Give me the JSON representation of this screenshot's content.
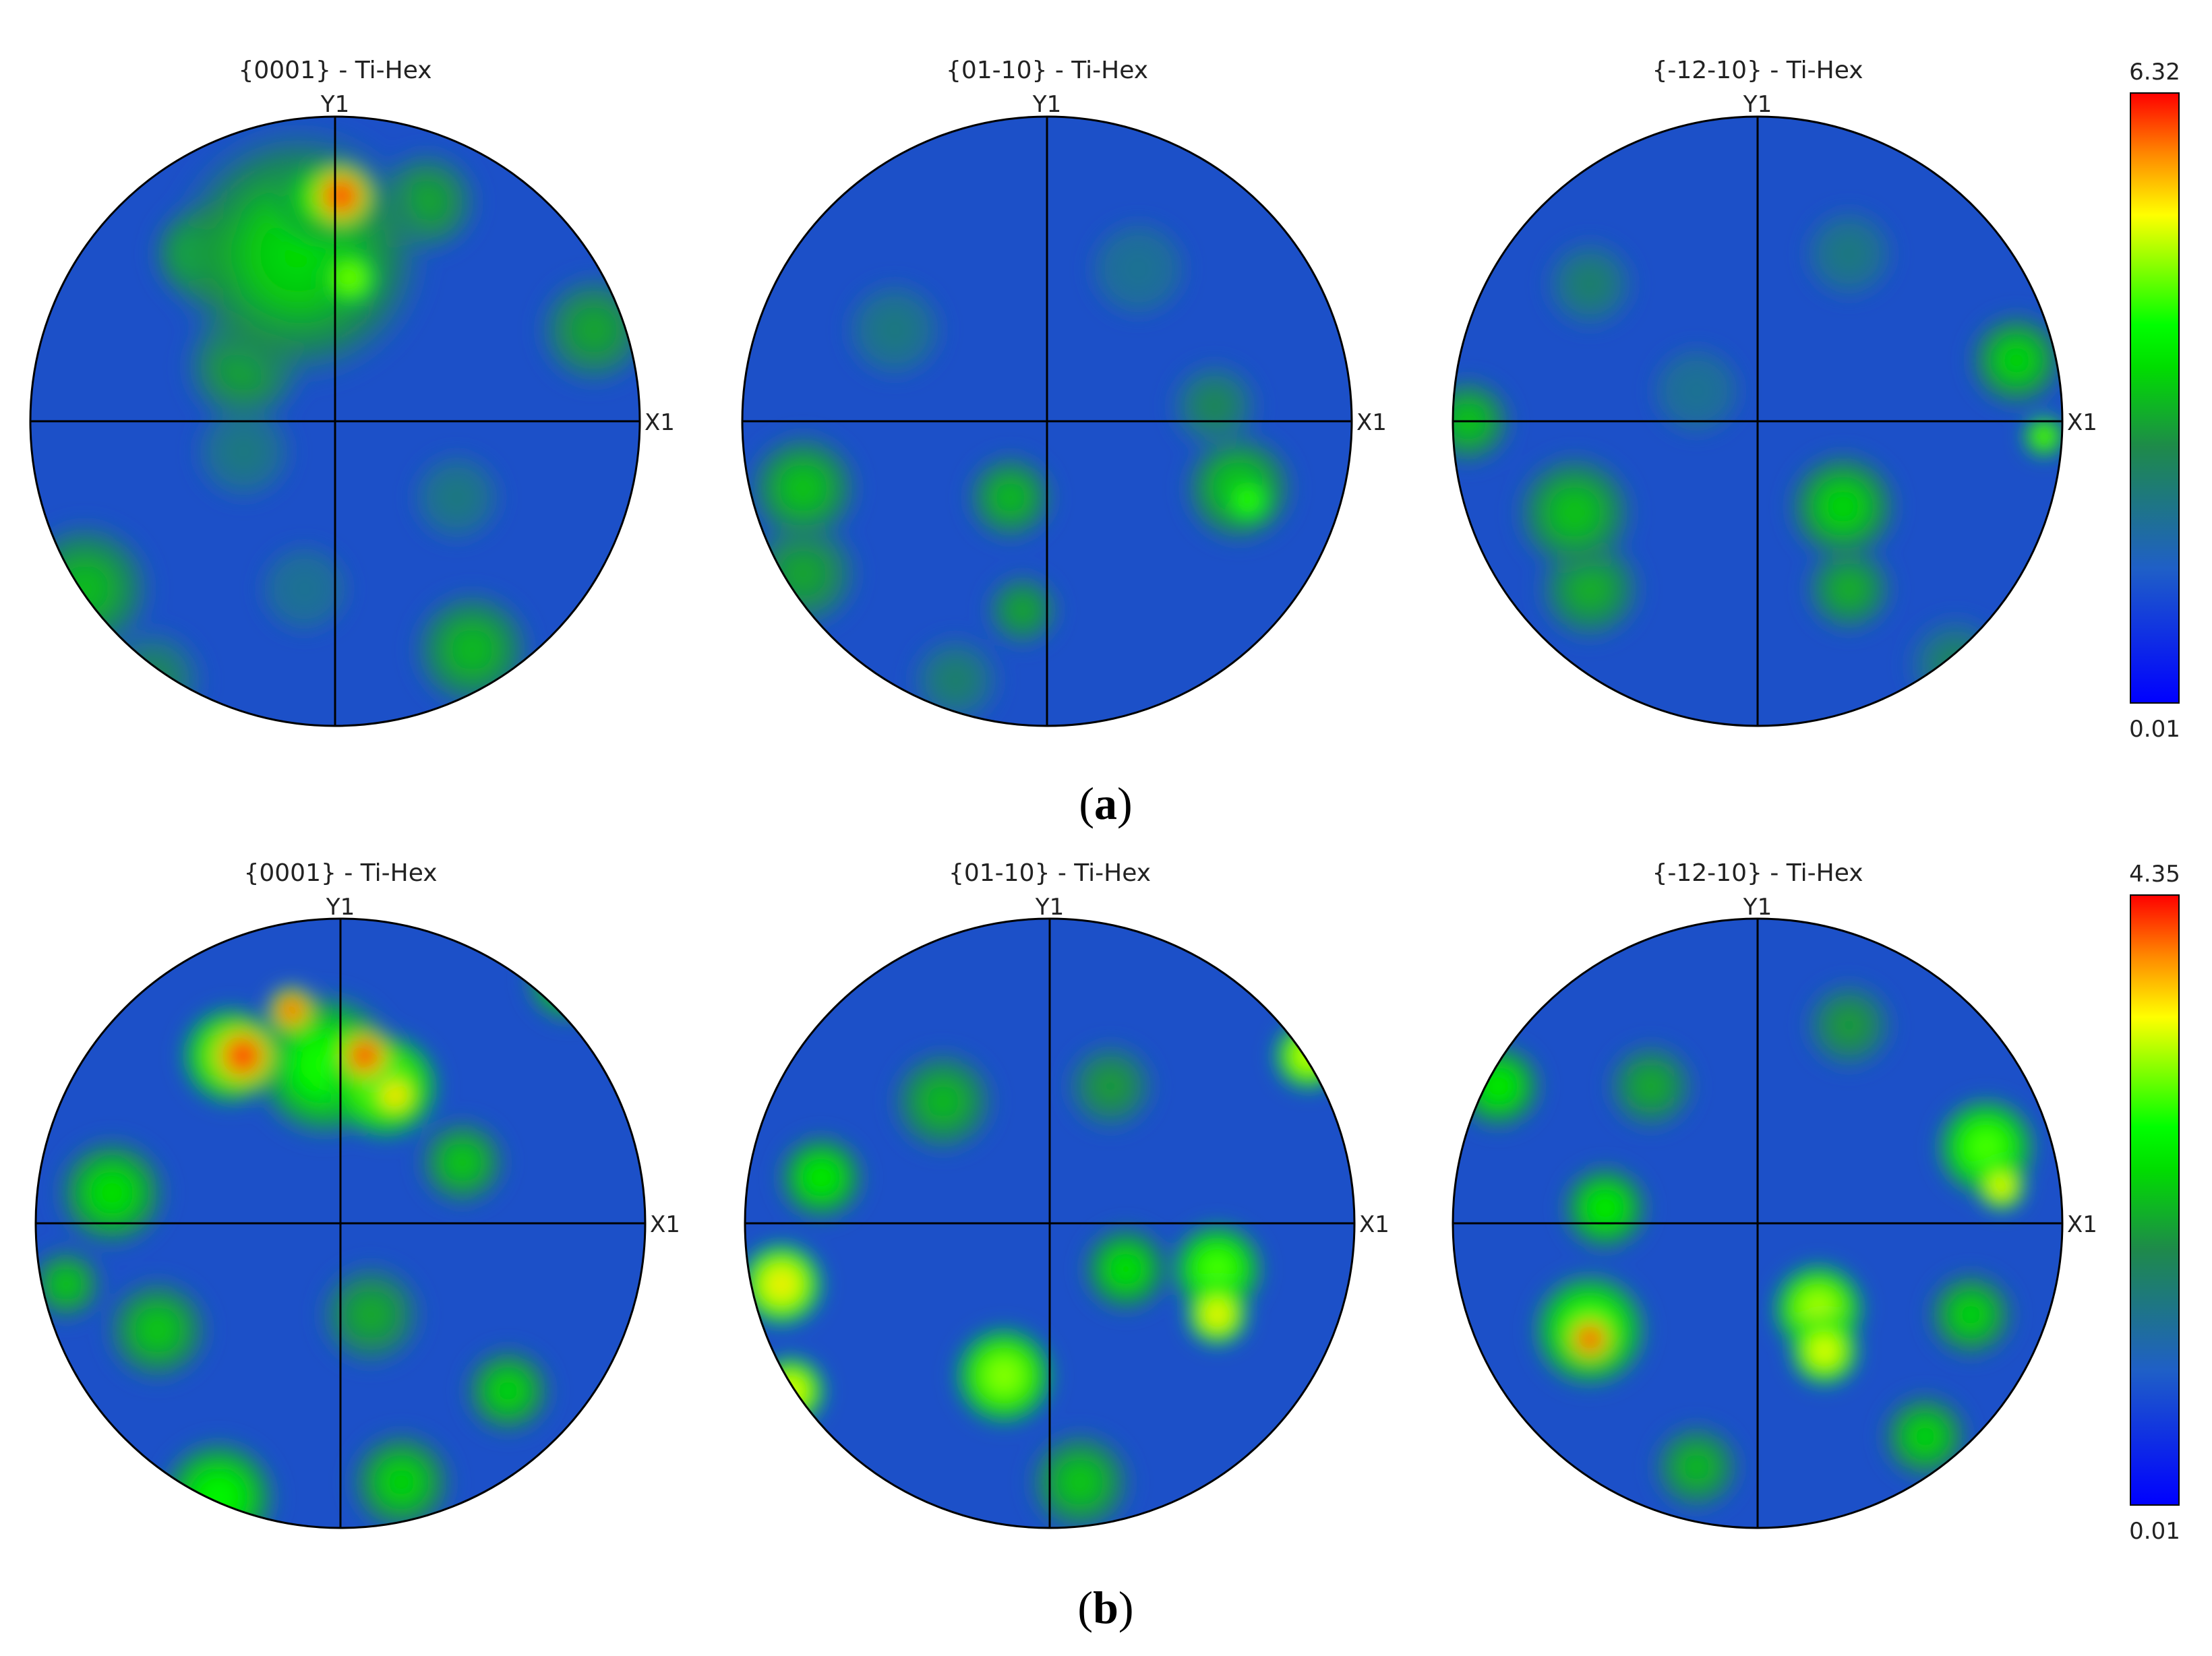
{
  "chart_data": [
    {
      "type": "heatmap",
      "panel_label": "a",
      "colorbar": {
        "max_label": "6.32",
        "min_label": "0.01",
        "max": 6.32,
        "min": 0.01
      },
      "plots": [
        {
          "title": "{0001} - Ti-Hex",
          "y_axis": "Y1",
          "x_axis": "X1",
          "features": [
            {
              "x": -0.43,
              "y": 0.55,
              "r": 0.14,
              "v": 3.5
            },
            {
              "x": -0.12,
              "y": 0.55,
              "r": 0.34,
              "v": 3.5
            },
            {
              "x": -0.05,
              "y": 0.73,
              "r": 0.12,
              "v": 3.8
            },
            {
              "x": 0.02,
              "y": 0.74,
              "r": 0.095,
              "v": 6.2
            },
            {
              "x": 0.05,
              "y": 0.47,
              "r": 0.08,
              "v": 4.6
            },
            {
              "x": 0.3,
              "y": 0.72,
              "r": 0.14,
              "v": 3.0
            },
            {
              "x": -0.3,
              "y": 0.18,
              "r": 0.16,
              "v": 3.0
            },
            {
              "x": 0.85,
              "y": 0.3,
              "r": 0.15,
              "v": 3.0
            },
            {
              "x": -0.82,
              "y": -0.55,
              "r": 0.18,
              "v": 3.2
            },
            {
              "x": 0.45,
              "y": -0.75,
              "r": 0.16,
              "v": 3.2
            },
            {
              "x": -0.3,
              "y": -0.1,
              "r": 0.13,
              "v": 2.2
            },
            {
              "x": 0.4,
              "y": -0.25,
              "r": 0.12,
              "v": 2.2
            },
            {
              "x": -0.6,
              "y": -0.85,
              "r": 0.14,
              "v": 2.6
            },
            {
              "x": -0.1,
              "y": -0.55,
              "r": 0.12,
              "v": 2.0
            }
          ]
        },
        {
          "title": "{01-10} - Ti-Hex",
          "y_axis": "Y1",
          "x_axis": "X1",
          "features": [
            {
              "x": -0.8,
              "y": -0.22,
              "r": 0.15,
              "v": 3.3
            },
            {
              "x": -0.8,
              "y": -0.5,
              "r": 0.15,
              "v": 3.0
            },
            {
              "x": -0.12,
              "y": -0.25,
              "r": 0.12,
              "v": 3.2
            },
            {
              "x": -0.08,
              "y": -0.62,
              "r": 0.1,
              "v": 3.0
            },
            {
              "x": 0.63,
              "y": -0.22,
              "r": 0.15,
              "v": 3.4
            },
            {
              "x": 0.66,
              "y": -0.26,
              "r": 0.07,
              "v": 4.3
            },
            {
              "x": 0.55,
              "y": 0.05,
              "r": 0.12,
              "v": 2.6
            },
            {
              "x": -0.5,
              "y": 0.3,
              "r": 0.13,
              "v": 2.2
            },
            {
              "x": 0.3,
              "y": 0.5,
              "r": 0.13,
              "v": 2.0
            },
            {
              "x": -0.3,
              "y": -0.85,
              "r": 0.12,
              "v": 2.4
            }
          ]
        },
        {
          "title": "{-12-10} - Ti-Hex",
          "y_axis": "Y1",
          "x_axis": "X1",
          "features": [
            {
              "x": -0.95,
              "y": 0.0,
              "r": 0.12,
              "v": 3.3
            },
            {
              "x": -0.6,
              "y": -0.3,
              "r": 0.16,
              "v": 3.3
            },
            {
              "x": -0.55,
              "y": -0.55,
              "r": 0.14,
              "v": 3.1
            },
            {
              "x": 0.28,
              "y": -0.28,
              "r": 0.15,
              "v": 3.5
            },
            {
              "x": 0.3,
              "y": -0.55,
              "r": 0.12,
              "v": 3.1
            },
            {
              "x": 0.85,
              "y": 0.2,
              "r": 0.13,
              "v": 3.5
            },
            {
              "x": 0.94,
              "y": -0.05,
              "r": 0.06,
              "v": 4.5
            },
            {
              "x": -0.55,
              "y": 0.45,
              "r": 0.12,
              "v": 2.4
            },
            {
              "x": 0.3,
              "y": 0.55,
              "r": 0.12,
              "v": 2.2
            },
            {
              "x": -0.2,
              "y": 0.1,
              "r": 0.12,
              "v": 2.0
            },
            {
              "x": 0.65,
              "y": -0.8,
              "r": 0.13,
              "v": 2.5
            }
          ]
        }
      ]
    },
    {
      "type": "heatmap",
      "panel_label": "b",
      "colorbar": {
        "max_label": "4.35",
        "min_label": "0.01",
        "max": 4.35,
        "min": 0.01
      },
      "plots": [
        {
          "title": "{0001} - Ti-Hex",
          "y_axis": "Y1",
          "x_axis": "X1",
          "features": [
            {
              "x": -0.36,
              "y": 0.55,
              "r": 0.14,
              "v": 3.2
            },
            {
              "x": -0.05,
              "y": 0.52,
              "r": 0.2,
              "v": 2.8
            },
            {
              "x": 0.15,
              "y": 0.45,
              "r": 0.15,
              "v": 3.2
            },
            {
              "x": -0.32,
              "y": 0.55,
              "r": 0.1,
              "v": 4.3
            },
            {
              "x": -0.16,
              "y": 0.7,
              "r": 0.07,
              "v": 4.2
            },
            {
              "x": 0.08,
              "y": 0.55,
              "r": 0.08,
              "v": 4.3
            },
            {
              "x": 0.18,
              "y": 0.42,
              "r": 0.07,
              "v": 3.8
            },
            {
              "x": -0.75,
              "y": 0.1,
              "r": 0.15,
              "v": 2.5
            },
            {
              "x": 0.4,
              "y": 0.2,
              "r": 0.12,
              "v": 2.3
            },
            {
              "x": -0.6,
              "y": -0.35,
              "r": 0.14,
              "v": 2.3
            },
            {
              "x": 0.1,
              "y": -0.3,
              "r": 0.14,
              "v": 2.1
            },
            {
              "x": -0.4,
              "y": -0.9,
              "r": 0.16,
              "v": 2.7
            },
            {
              "x": 0.2,
              "y": -0.85,
              "r": 0.14,
              "v": 2.4
            },
            {
              "x": 0.55,
              "y": -0.55,
              "r": 0.12,
              "v": 2.4
            },
            {
              "x": 0.75,
              "y": 0.8,
              "r": 0.12,
              "v": 2.6
            },
            {
              "x": -0.9,
              "y": -0.2,
              "r": 0.1,
              "v": 2.3
            }
          ]
        },
        {
          "title": "{01-10} - Ti-Hex",
          "y_axis": "Y1",
          "x_axis": "X1",
          "features": [
            {
              "x": -0.88,
              "y": -0.2,
              "r": 0.12,
              "v": 3.6
            },
            {
              "x": -0.85,
              "y": -0.55,
              "r": 0.1,
              "v": 3.5
            },
            {
              "x": -0.75,
              "y": 0.15,
              "r": 0.12,
              "v": 2.6
            },
            {
              "x": -0.15,
              "y": -0.5,
              "r": 0.14,
              "v": 3.2
            },
            {
              "x": 0.55,
              "y": -0.15,
              "r": 0.13,
              "v": 3.0
            },
            {
              "x": 0.55,
              "y": -0.3,
              "r": 0.09,
              "v": 3.6
            },
            {
              "x": 0.85,
              "y": 0.55,
              "r": 0.1,
              "v": 3.4
            },
            {
              "x": 0.25,
              "y": -0.15,
              "r": 0.12,
              "v": 2.5
            },
            {
              "x": -0.35,
              "y": 0.4,
              "r": 0.14,
              "v": 2.2
            },
            {
              "x": 0.2,
              "y": 0.45,
              "r": 0.12,
              "v": 2.0
            },
            {
              "x": 0.1,
              "y": -0.85,
              "r": 0.14,
              "v": 2.3
            }
          ]
        },
        {
          "title": "{-12-10} - Ti-Hex",
          "y_axis": "Y1",
          "x_axis": "X1",
          "features": [
            {
              "x": -0.55,
              "y": -0.35,
              "r": 0.16,
              "v": 3.0
            },
            {
              "x": -0.55,
              "y": -0.38,
              "r": 0.07,
              "v": 4.3
            },
            {
              "x": -0.5,
              "y": 0.05,
              "r": 0.12,
              "v": 2.6
            },
            {
              "x": 0.2,
              "y": -0.28,
              "r": 0.13,
              "v": 3.3
            },
            {
              "x": 0.22,
              "y": -0.42,
              "r": 0.1,
              "v": 3.5
            },
            {
              "x": 0.75,
              "y": 0.25,
              "r": 0.14,
              "v": 3.0
            },
            {
              "x": 0.8,
              "y": 0.12,
              "r": 0.07,
              "v": 3.6
            },
            {
              "x": 0.7,
              "y": -0.3,
              "r": 0.12,
              "v": 2.4
            },
            {
              "x": -0.85,
              "y": 0.45,
              "r": 0.12,
              "v": 2.6
            },
            {
              "x": -0.35,
              "y": 0.45,
              "r": 0.12,
              "v": 2.1
            },
            {
              "x": 0.3,
              "y": 0.65,
              "r": 0.12,
              "v": 2.0
            },
            {
              "x": -0.2,
              "y": -0.8,
              "r": 0.12,
              "v": 2.2
            },
            {
              "x": 0.55,
              "y": -0.7,
              "r": 0.12,
              "v": 2.4
            }
          ]
        }
      ]
    }
  ]
}
